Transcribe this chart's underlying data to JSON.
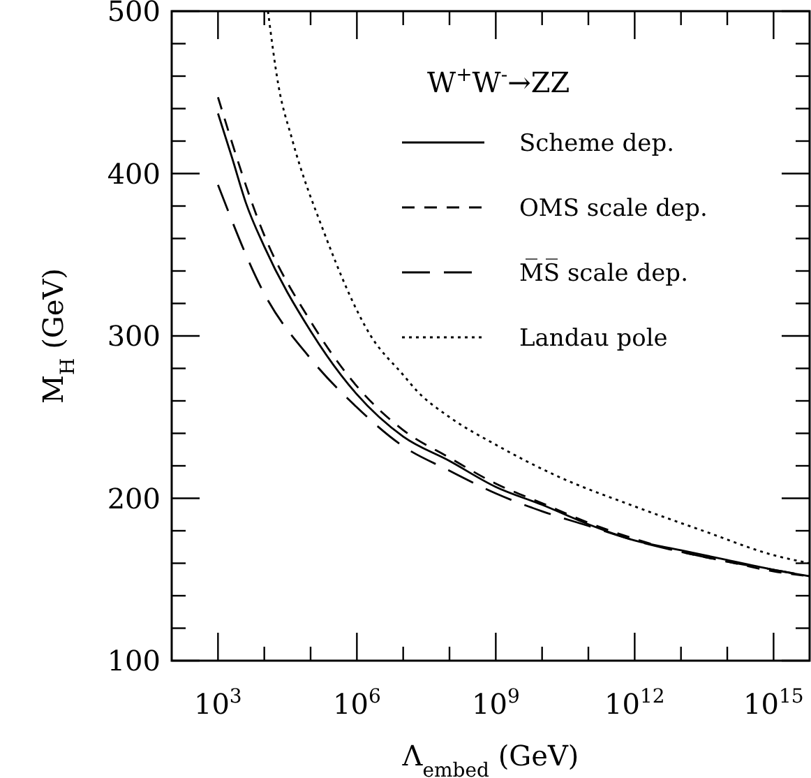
{
  "chart_data": {
    "type": "line",
    "xlabel": "Λ$_{embed}$ (GeV)",
    "ylabel": "M$_{H}$ (GeV)",
    "legend_title": "W$^{+}$W$^{-}$→ZZ",
    "log": "x",
    "grid": false,
    "legend": "top right",
    "xlim": [
      100,
      6000000000000000.0
    ],
    "ylim": [
      100,
      500
    ],
    "xticks": [
      {
        "value": 1000,
        "label": "10$^{3}$"
      },
      {
        "value": 10000.0,
        "label": null
      },
      {
        "value": 100000.0,
        "label": null
      },
      {
        "value": 1000000.0,
        "label": "10$^{6}$"
      },
      {
        "value": 10000000.0,
        "label": null
      },
      {
        "value": 100000000.0,
        "label": null
      },
      {
        "value": 1000000000.0,
        "label": "10$^{9}$"
      },
      {
        "value": 10000000000.0,
        "label": null
      },
      {
        "value": 100000000000.0,
        "label": null
      },
      {
        "value": 1000000000000.0,
        "label": "10$^{12}$"
      },
      {
        "value": 10000000000000.0,
        "label": null
      },
      {
        "value": 100000000000000.0,
        "label": null
      },
      {
        "value": 1000000000000000.0,
        "label": "10$^{15}$"
      }
    ],
    "yticks": [
      100,
      {
        "value": 120,
        "label": null
      },
      {
        "value": 140,
        "label": null
      },
      {
        "value": 160,
        "label": null
      },
      {
        "value": 180,
        "label": null
      },
      200,
      {
        "value": 220,
        "label": null
      },
      {
        "value": 240,
        "label": null
      },
      {
        "value": 260,
        "label": null
      },
      {
        "value": 280,
        "label": null
      },
      300,
      {
        "value": 320,
        "label": null
      },
      {
        "value": 340,
        "label": null
      },
      {
        "value": 360,
        "label": null
      },
      {
        "value": 380,
        "label": null
      },
      400,
      {
        "value": 420,
        "label": null
      },
      {
        "value": 440,
        "label": null
      },
      {
        "value": 460,
        "label": null
      },
      {
        "value": 480,
        "label": null
      },
      500
    ],
    "series": [
      {
        "name": "Scheme dep.",
        "color": "#000000",
        "line_style": "solid",
        "x": [
          1000,
          2000,
          4000,
          10000.0,
          100000.0,
          1000000.0,
          10000000.0,
          100000000.0,
          1000000000.0,
          10000000000.0,
          100000000000.0,
          1000000000000.0,
          10000000000000.0,
          100000000000000.0,
          1000000000000000.0,
          6000000000000000.0
        ],
        "values": [
          437,
          410,
          382,
          355,
          303,
          264,
          238,
          223,
          207,
          196,
          184,
          174,
          168,
          162,
          156,
          152
        ]
      },
      {
        "name": "OMS scale dep.",
        "color": "#000000",
        "line_style": "dashed",
        "x": [
          1000,
          10000.0,
          100000.0,
          1000000.0,
          10000000.0,
          100000000.0,
          1000000000.0,
          10000000000.0,
          100000000000.0,
          1000000000000.0,
          10000000000000.0,
          100000000000000.0,
          1000000000000000.0,
          6000000000000000.0
        ],
        "values": [
          447,
          362,
          309,
          269,
          242,
          225,
          209,
          197,
          185,
          175,
          167,
          161,
          155,
          152
        ]
      },
      {
        "name": "M̅S̅ scale dep.",
        "color": "#000000",
        "line_style": "dashed",
        "x": [
          1000,
          10000.0,
          100000.0,
          1000000.0,
          10000000.0,
          100000000.0,
          1000000000.0,
          10000000000.0,
          100000000000.0,
          1000000000000.0,
          10000000000000.0,
          100000000000000.0,
          1000000000000000.0,
          6000000000000000.0
        ],
        "values": [
          393,
          326,
          286,
          256,
          232,
          217,
          203,
          192,
          183,
          174,
          167,
          161,
          156,
          152
        ]
      },
      {
        "name": "Landau pole",
        "color": "#000000",
        "line_style": "dotted",
        "x": [
          12000,
          20000,
          40000,
          200000,
          2000000.0,
          10000000.0,
          20000000.0,
          100000000.0,
          1000000000.0,
          20000000000.0,
          1000000000000.0,
          30000000000000.0,
          1000000000000000.0,
          6000000000000000.0
        ],
        "values": [
          500,
          455,
          421,
          363,
          300,
          276,
          266,
          250,
          233,
          214,
          195,
          180,
          165,
          160
        ]
      }
    ]
  }
}
